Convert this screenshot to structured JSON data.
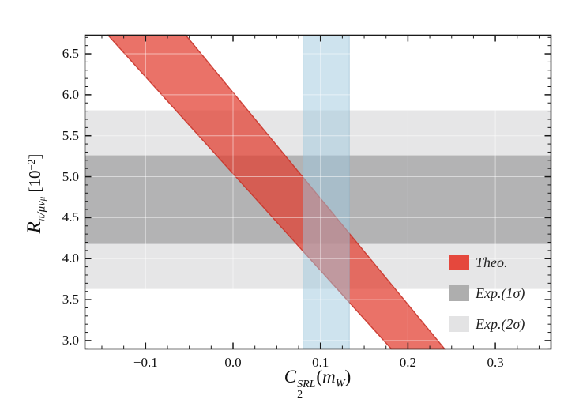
{
  "figure": {
    "background": "#ffffff",
    "frame_color": "#1a1a1a",
    "text_color": "#111111"
  },
  "chart_data": {
    "type": "area",
    "title": "",
    "xlabel": {
      "base": "C",
      "sub": "2",
      "sup": "SRL",
      "arg_open": "(",
      "arg_m": "m",
      "arg_sub": "W",
      "arg_close": ")"
    },
    "ylabel": {
      "base": "R",
      "sub": "π/μν",
      "subsub": "μ",
      "unit_open": " [10",
      "unit_sup": "−2",
      "unit_close": "]"
    },
    "xlim": [
      -0.1694,
      0.3636
    ],
    "ylim": [
      2.898,
      6.727
    ],
    "x_major_ticks": [
      -0.1,
      0.0,
      0.1,
      0.2,
      0.3
    ],
    "x_tick_labels": [
      "−0.1",
      "0.0",
      "0.1",
      "0.2",
      "0.3"
    ],
    "x_minor_step": 0.025,
    "y_major_ticks": [
      3.0,
      3.5,
      4.0,
      4.5,
      5.0,
      5.5,
      6.0,
      6.5
    ],
    "y_tick_labels": [
      "3.0",
      "3.5",
      "4.0",
      "4.5",
      "5.0",
      "5.5",
      "6.0",
      "6.5"
    ],
    "y_minor_step": 0.1,
    "gridlines": {
      "at_major_ticks": true,
      "color": "rgba(255,255,255,0.5)"
    },
    "bands": {
      "exp_2sigma": {
        "label": "Exp.(2σ)",
        "orientation": "horizontal",
        "range": [
          3.63,
          5.81
        ],
        "color": "#e6e6e7"
      },
      "exp_1sigma": {
        "label": "Exp.(1σ)",
        "orientation": "horizontal",
        "range": [
          4.18,
          5.26
        ],
        "color": "#b3b3b4"
      },
      "theo": {
        "label": "Theo.",
        "orientation": "diagonal",
        "polygon": [
          [
            -0.143,
            6.727
          ],
          [
            -0.054,
            6.727
          ],
          [
            0.242,
            2.898
          ],
          [
            0.181,
            2.898
          ]
        ],
        "color": "#e23b2e",
        "opacity": 0.72,
        "edge": "#c9352b"
      },
      "c2_constraint": {
        "orientation": "vertical",
        "range": [
          0.08,
          0.133
        ],
        "color": "#9ec7de",
        "opacity": 0.5,
        "edge": "#8ab3cc"
      }
    },
    "legend": {
      "position": "right-middle",
      "entries": [
        {
          "label": "Theo.",
          "color": "#e5483d"
        },
        {
          "label": "Exp.(1σ)",
          "color": "#aeaeae"
        },
        {
          "label": "Exp.(2σ)",
          "color": "#e3e3e4"
        }
      ]
    }
  }
}
